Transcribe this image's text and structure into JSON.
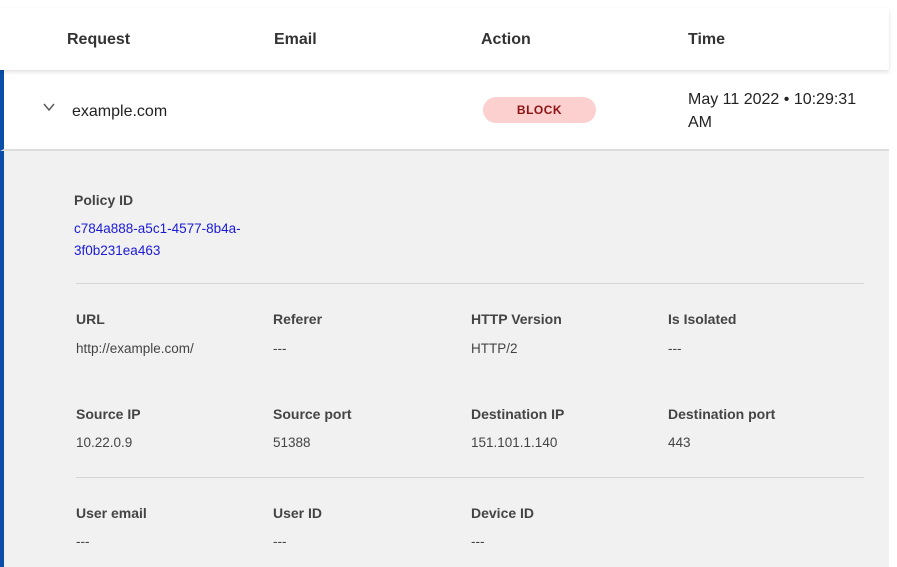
{
  "header": {
    "columns": [
      "Request",
      "Email",
      "Action",
      "Time"
    ]
  },
  "row": {
    "request": "example.com",
    "email": "",
    "action": "BLOCK",
    "time": "May 11 2022 • 10:29:31 AM"
  },
  "colors": {
    "accent": "#0a4ea8",
    "block_bg": "#fcd0cf",
    "block_text": "#8c1212",
    "link": "#1a1ad6"
  },
  "detail": {
    "policy_label": "Policy ID",
    "policy_id": "c784a888-a5c1-4577-8b4a-3f0b231ea463",
    "fields": [
      {
        "label": "URL",
        "value": "http://example.com/"
      },
      {
        "label": "Referer",
        "value": "---"
      },
      {
        "label": "HTTP Version",
        "value": "HTTP/2"
      },
      {
        "label": "Is Isolated",
        "value": "---"
      },
      {
        "label": "Source IP",
        "value": "10.22.0.9"
      },
      {
        "label": "Source port",
        "value": "51388"
      },
      {
        "label": "Destination IP",
        "value": "151.101.1.140"
      },
      {
        "label": "Destination port",
        "value": "443"
      },
      {
        "label": "User email",
        "value": "---"
      },
      {
        "label": "User ID",
        "value": "---"
      },
      {
        "label": "Device ID",
        "value": "---"
      }
    ]
  }
}
